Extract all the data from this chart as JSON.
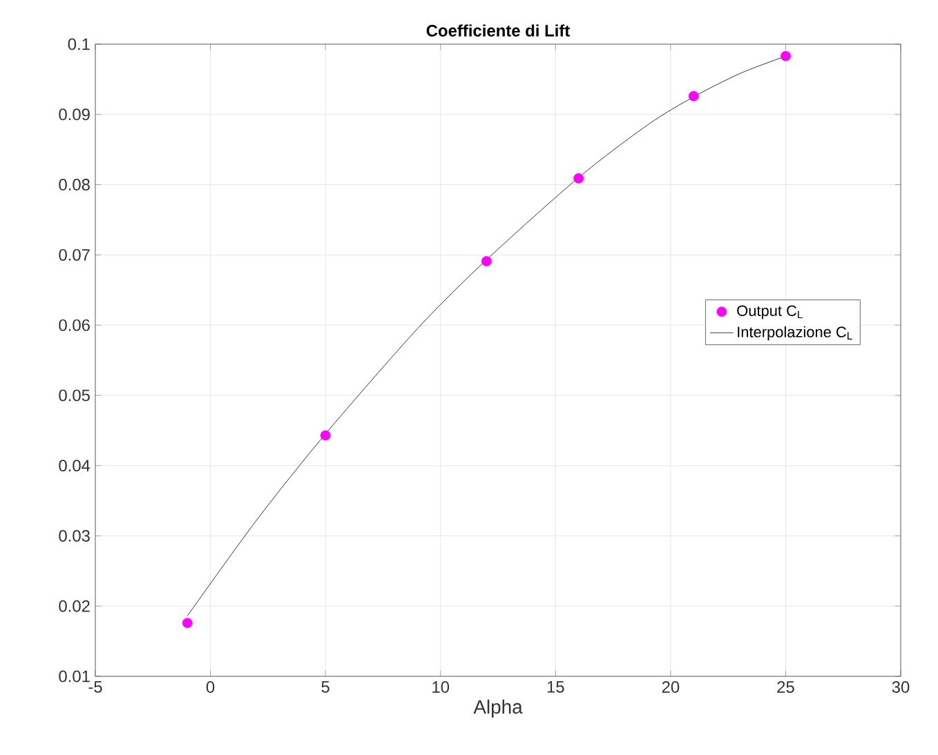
{
  "chart_data": {
    "type": "line",
    "title": "Coefficiente di Lift",
    "xlabel": "Alpha",
    "xlim": [
      -5,
      30
    ],
    "xticks": [
      -5,
      0,
      5,
      10,
      15,
      20,
      25,
      30
    ],
    "ylim": [
      0.01,
      0.1
    ],
    "yticks": [
      0.01,
      0.02,
      0.03,
      0.04,
      0.05,
      0.06,
      0.07,
      0.08,
      0.09,
      0.1
    ],
    "grid": true,
    "legend": "right",
    "series": [
      {
        "name": "Output C$_{L}$",
        "type": "scatter",
        "marker": "circle",
        "color": "#ff00ff",
        "x": [
          -1,
          5,
          12,
          16,
          21,
          25
        ],
        "values": [
          0.0176,
          0.0443,
          0.0691,
          0.0809,
          0.0926,
          0.0983
        ]
      },
      {
        "name": "Interpolazione C$_{L}$",
        "marker": "none",
        "line_style": "solid",
        "color": "#000000",
        "x": [
          -1,
          2,
          5,
          9,
          12,
          16,
          19,
          21,
          23,
          25
        ],
        "values": [
          0.0186,
          0.0322,
          0.0445,
          0.0595,
          0.0693,
          0.081,
          0.0885,
          0.0925,
          0.0958,
          0.0983
        ]
      }
    ]
  }
}
